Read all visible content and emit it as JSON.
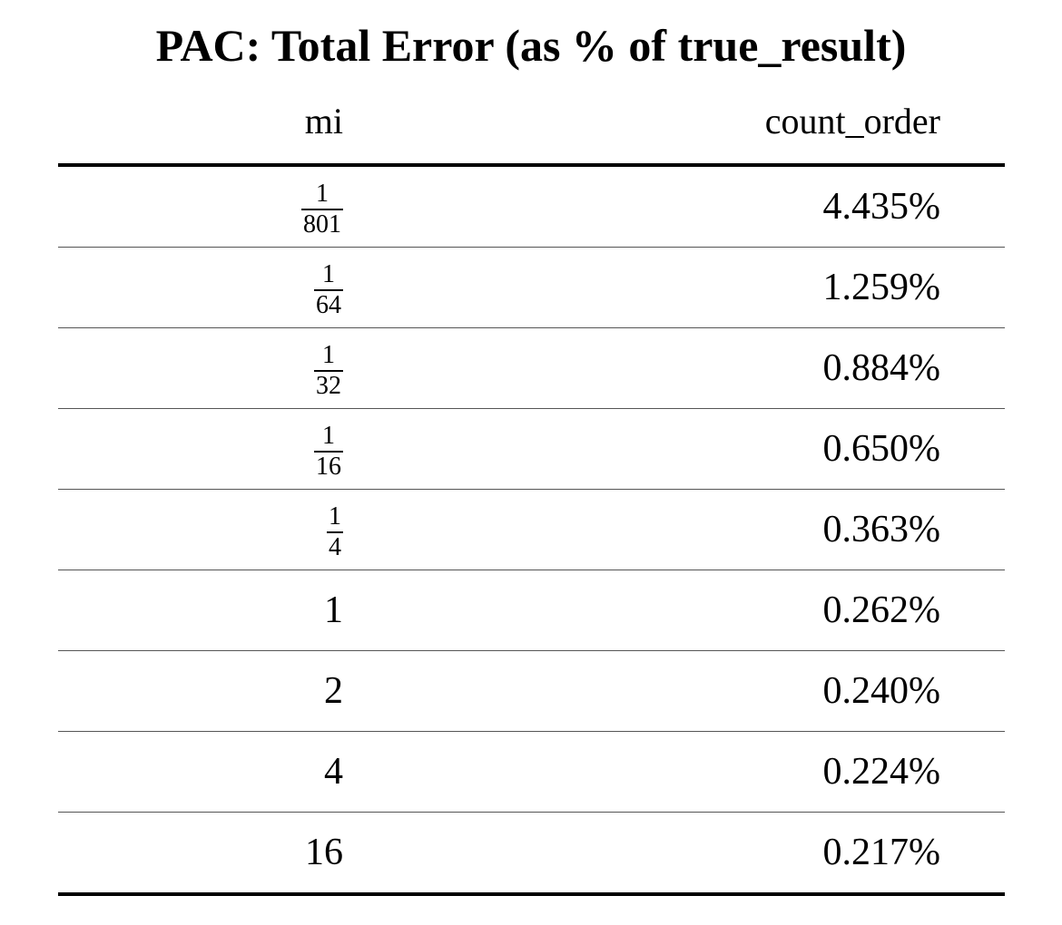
{
  "title": "PAC: Total Error (as % of true_result)",
  "table": {
    "columns": [
      "mi",
      "count_order"
    ],
    "rows": [
      {
        "mi": {
          "type": "fraction",
          "num": "1",
          "den": "801"
        },
        "count_order": "4.435%"
      },
      {
        "mi": {
          "type": "fraction",
          "num": "1",
          "den": "64"
        },
        "count_order": "1.259%"
      },
      {
        "mi": {
          "type": "fraction",
          "num": "1",
          "den": "32"
        },
        "count_order": "0.884%"
      },
      {
        "mi": {
          "type": "fraction",
          "num": "1",
          "den": "16"
        },
        "count_order": "0.650%"
      },
      {
        "mi": {
          "type": "fraction",
          "num": "1",
          "den": "4"
        },
        "count_order": "0.363%"
      },
      {
        "mi": {
          "type": "plain",
          "text": "1"
        },
        "count_order": "0.262%"
      },
      {
        "mi": {
          "type": "plain",
          "text": "2"
        },
        "count_order": "0.240%"
      },
      {
        "mi": {
          "type": "plain",
          "text": "4"
        },
        "count_order": "0.224%"
      },
      {
        "mi": {
          "type": "plain",
          "text": "16"
        },
        "count_order": "0.217%"
      }
    ]
  }
}
